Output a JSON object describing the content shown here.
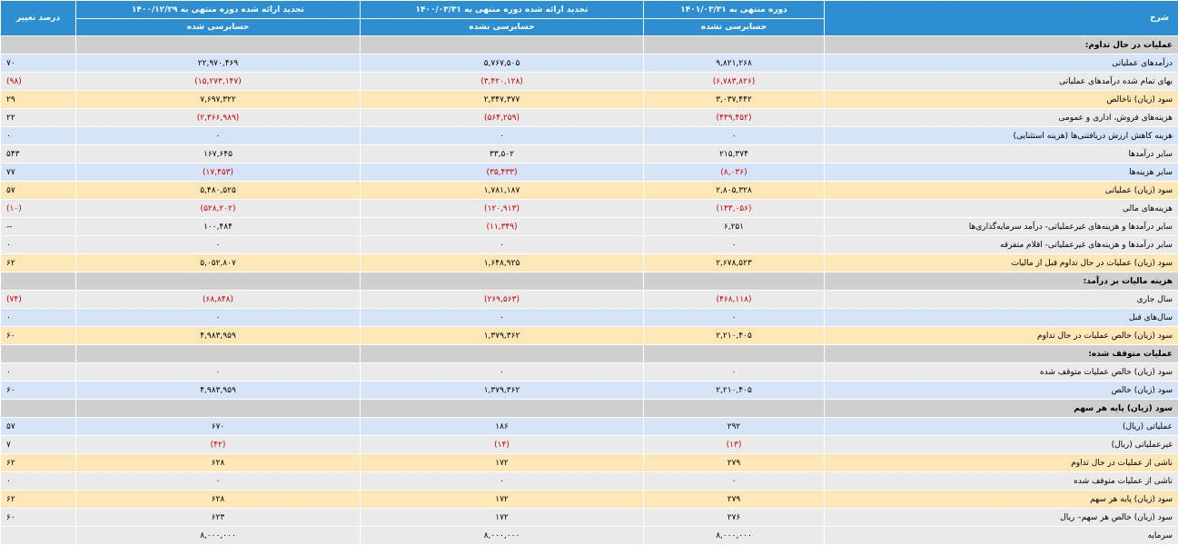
{
  "headers": {
    "desc": "شرح",
    "col1": "دوره منتهی به ۱۴۰۱/۰۳/۳۱",
    "col2": "تجدید ارائه شده دوره منتهی به ۱۴۰۰/۰۳/۳۱",
    "col3": "تجدید ارائه شده دوره منتهی به ۱۴۰۰/۱۲/۲۹",
    "pct": "درصد تغییر",
    "sub1": "حسابرسی نشده",
    "sub2": "حسابرسی نشده",
    "sub3": "حسابرسی شده"
  },
  "rows": [
    {
      "type": "section",
      "label": "عملیات در حال تداوم:",
      "c1": "",
      "c2": "",
      "c3": "",
      "pct": ""
    },
    {
      "type": "blue",
      "label": "درآمدهای عملیاتی",
      "c1": "۹,۸۲۱,۲۶۸",
      "c2": "۵,۷۶۷,۵۰۵",
      "c3": "۲۲,۹۷۰,۴۶۹",
      "pct": "۷۰",
      "neg": []
    },
    {
      "type": "gray",
      "label": "بهای تمام شده درآمدهای عملیاتی",
      "c1": "(۶,۷۸۳,۸۲۶)",
      "c2": "(۳,۴۲۰,۱۲۸)",
      "c3": "(۱۵,۲۷۳,۱۴۷)",
      "pct": "(۹۸)",
      "neg": [
        "c1",
        "c2",
        "c3",
        "pct"
      ]
    },
    {
      "type": "orange",
      "label": "سود (زیان) ناخالص",
      "c1": "۳,۰۳۷,۴۴۲",
      "c2": "۲,۳۴۷,۳۷۷",
      "c3": "۷,۶۹۷,۳۲۲",
      "pct": "۲۹",
      "neg": []
    },
    {
      "type": "gray",
      "label": "هزینه‌های فروش، اداری و عمومی",
      "c1": "(۴۳۹,۴۵۲)",
      "c2": "(۵۶۴,۲۵۹)",
      "c3": "(۲,۳۶۶,۹۸۹)",
      "pct": "۲۲",
      "neg": [
        "c1",
        "c2",
        "c3"
      ]
    },
    {
      "type": "blue",
      "label": "هزینه کاهش ارزش دریافتنی‌ها (هزینه استثنایی)",
      "c1": "۰",
      "c2": "۰",
      "c3": "۰",
      "pct": "۰",
      "neg": []
    },
    {
      "type": "gray",
      "label": "سایر درآمدها",
      "c1": "۲۱۵,۳۷۴",
      "c2": "۳۳,۵۰۲",
      "c3": "۱۶۷,۶۴۵",
      "pct": "۵۴۳",
      "neg": []
    },
    {
      "type": "blue",
      "label": "سایر هزینه‌ها",
      "c1": "(۸,۰۳۶)",
      "c2": "(۳۵,۴۳۳)",
      "c3": "(۱۷,۴۵۳)",
      "pct": "۷۷",
      "neg": [
        "c1",
        "c2",
        "c3"
      ]
    },
    {
      "type": "orange",
      "label": "سود (زیان) عملیاتی",
      "c1": "۲,۸۰۵,۳۲۸",
      "c2": "۱,۷۸۱,۱۸۷",
      "c3": "۵,۴۸۰,۵۲۵",
      "pct": "۵۷",
      "neg": []
    },
    {
      "type": "gray",
      "label": "هزینه‌های مالی",
      "c1": "(۱۳۳,۰۵۶)",
      "c2": "(۱۲۰,۹۱۳)",
      "c3": "(۵۲۸,۲۰۲)",
      "pct": "(۱۰)",
      "neg": [
        "c1",
        "c2",
        "c3",
        "pct"
      ]
    },
    {
      "type": "gray",
      "label": "سایر درآمدها و هزینه‌های غیرعملیاتی- درآمد سرمایه‌گذاری‌ها",
      "c1": "۶,۲۵۱",
      "c2": "(۱۱,۳۴۹)",
      "c3": "۱۰۰,۴۸۴",
      "pct": "--",
      "neg": [
        "c2"
      ]
    },
    {
      "type": "gray",
      "label": "سایر درآمدها و هزینه‌های غیرعملیاتی- اقلام متفرقه",
      "c1": "۰",
      "c2": "۰",
      "c3": "۰",
      "pct": "۰",
      "neg": []
    },
    {
      "type": "orange",
      "label": "سود (زیان) عملیات در حال تداوم قبل از مالیات",
      "c1": "۲,۶۷۸,۵۲۳",
      "c2": "۱,۶۴۸,۹۲۵",
      "c3": "۵,۰۵۲,۸۰۷",
      "pct": "۶۲",
      "neg": []
    },
    {
      "type": "section",
      "label": "هزینه مالیات بر درآمد:",
      "c1": "",
      "c2": "",
      "c3": "",
      "pct": ""
    },
    {
      "type": "gray",
      "label": "سال جاری",
      "c1": "(۴۶۸,۱۱۸)",
      "c2": "(۲۶۹,۵۶۳)",
      "c3": "(۶۸,۸۴۸)",
      "pct": "(۷۴)",
      "neg": [
        "c1",
        "c2",
        "c3",
        "pct"
      ]
    },
    {
      "type": "blue",
      "label": "سال‌های قبل",
      "c1": "۰",
      "c2": "۰",
      "c3": "۰",
      "pct": "۰",
      "neg": []
    },
    {
      "type": "orange",
      "label": "سود (زیان) خالص عملیات در حال تداوم",
      "c1": "۲,۲۱۰,۴۰۵",
      "c2": "۱,۳۷۹,۳۶۲",
      "c3": "۴,۹۸۳,۹۵۹",
      "pct": "۶۰",
      "neg": []
    },
    {
      "type": "section",
      "label": "عملیات متوقف شده:",
      "c1": "",
      "c2": "",
      "c3": "",
      "pct": ""
    },
    {
      "type": "gray",
      "label": "سود (زیان) خالص عملیات متوقف شده",
      "c1": "۰",
      "c2": "۰",
      "c3": "۰",
      "pct": "۰",
      "neg": []
    },
    {
      "type": "blue",
      "label": "سود (زیان) خالص",
      "c1": "۲,۲۱۰,۴۰۵",
      "c2": "۱,۳۷۹,۳۶۲",
      "c3": "۴,۹۸۳,۹۵۹",
      "pct": "۶۰",
      "neg": []
    },
    {
      "type": "section",
      "label": "سود (زیان) پایه هر سهم",
      "c1": "",
      "c2": "",
      "c3": "",
      "pct": ""
    },
    {
      "type": "blue",
      "label": "عملیاتی (ریال)",
      "c1": "۲۹۲",
      "c2": "۱۸۶",
      "c3": "۶۷۰",
      "pct": "۵۷",
      "neg": []
    },
    {
      "type": "gray",
      "label": "غیرعملیاتی (ریال)",
      "c1": "(۱۳)",
      "c2": "(۱۴)",
      "c3": "(۴۲)",
      "pct": "۷",
      "neg": [
        "c1",
        "c2",
        "c3"
      ]
    },
    {
      "type": "orange",
      "label": "ناشی از عملیات در حال تداوم",
      "c1": "۲۷۹",
      "c2": "۱۷۲",
      "c3": "۶۲۸",
      "pct": "۶۲",
      "neg": []
    },
    {
      "type": "gray",
      "label": "ناشی از عملیات متوقف شده",
      "c1": "۰",
      "c2": "۰",
      "c3": "۰",
      "pct": "۰",
      "neg": []
    },
    {
      "type": "orange",
      "label": "سود (زیان) پایه هر سهم",
      "c1": "۲۷۹",
      "c2": "۱۷۲",
      "c3": "۶۲۸",
      "pct": "۶۲",
      "neg": []
    },
    {
      "type": "gray",
      "label": "سود (زیان) خالص هر سهم– ریال",
      "c1": "۲۷۶",
      "c2": "۱۷۲",
      "c3": "۶۲۳",
      "pct": "۶۰",
      "neg": []
    },
    {
      "type": "gray",
      "label": "سرمایه",
      "c1": "۸,۰۰۰,۰۰۰",
      "c2": "۸,۰۰۰,۰۰۰",
      "c3": "۸,۰۰۰,۰۰۰",
      "pct": "",
      "neg": []
    }
  ]
}
